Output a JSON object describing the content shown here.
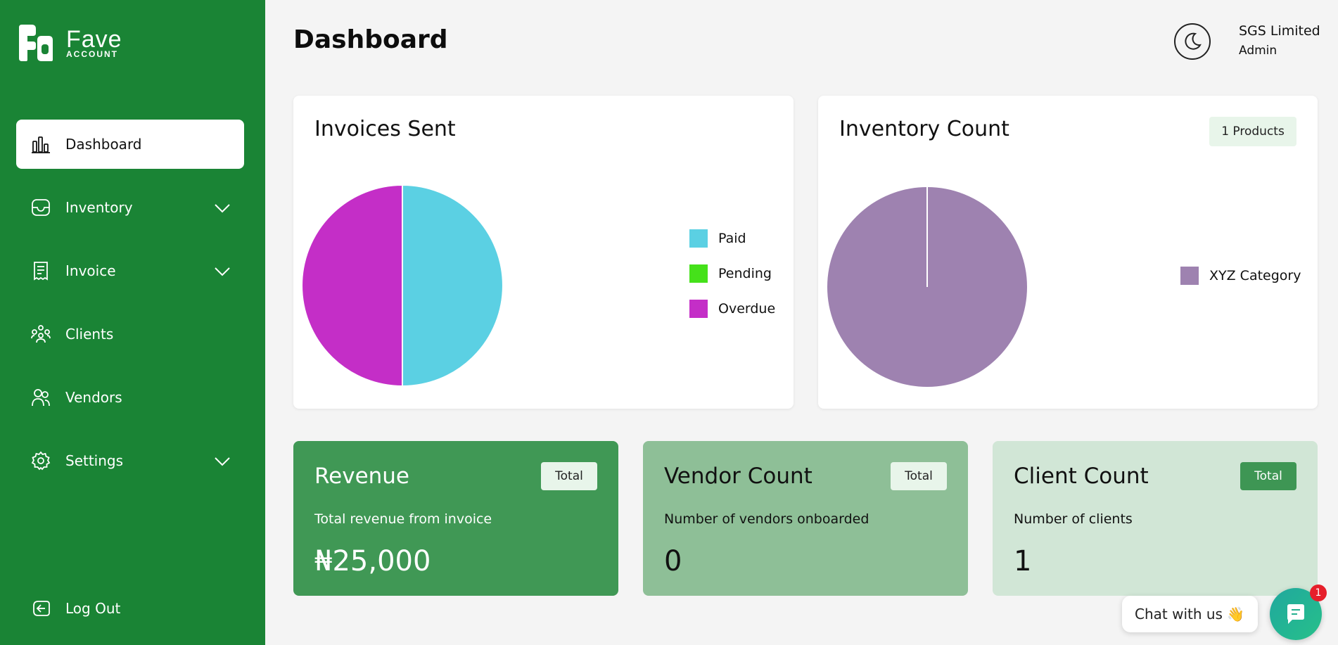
{
  "brand": {
    "line1": "Fave",
    "line2": "ACCOUNT"
  },
  "sidebar": {
    "items": [
      {
        "label": "Dashboard",
        "icon": "bar-chart-icon",
        "active": true,
        "has_submenu": false
      },
      {
        "label": "Inventory",
        "icon": "inbox-icon",
        "active": false,
        "has_submenu": true
      },
      {
        "label": "Invoice",
        "icon": "receipt-icon",
        "active": false,
        "has_submenu": true
      },
      {
        "label": "Clients",
        "icon": "clients-icon",
        "active": false,
        "has_submenu": false
      },
      {
        "label": "Vendors",
        "icon": "users-icon",
        "active": false,
        "has_submenu": false
      },
      {
        "label": "Settings",
        "icon": "gear-icon",
        "active": false,
        "has_submenu": true
      }
    ],
    "logout_label": "Log Out"
  },
  "header": {
    "title": "Dashboard",
    "user_name": "SGS Limited",
    "user_role": "Admin"
  },
  "invoices_card": {
    "title": "Invoices Sent",
    "legend": [
      {
        "label": "Paid",
        "color": "#5bd0e3"
      },
      {
        "label": "Pending",
        "color": "#45e11a"
      },
      {
        "label": "Overdue",
        "color": "#c42ec7"
      }
    ]
  },
  "inventory_card": {
    "title": "Inventory Count",
    "badge": "1 Products",
    "legend": [
      {
        "label": "XYZ Category",
        "color": "#9e82b0"
      }
    ]
  },
  "chart_data": [
    {
      "type": "pie",
      "categories": [
        "Paid",
        "Pending",
        "Overdue"
      ],
      "values": [
        1,
        0,
        1
      ],
      "colors": [
        "#5bd0e3",
        "#45e11a",
        "#c42ec7"
      ],
      "title": "Invoices Sent"
    },
    {
      "type": "pie",
      "categories": [
        "XYZ Category"
      ],
      "values": [
        1
      ],
      "colors": [
        "#9e82b0"
      ],
      "title": "Inventory Count"
    }
  ],
  "stats": {
    "revenue": {
      "title": "Revenue",
      "badge": "Total",
      "desc": "Total revenue from invoice",
      "value": "₦25,000"
    },
    "vendors": {
      "title": "Vendor Count",
      "badge": "Total",
      "desc": "Number of vendors onboarded",
      "value": "0"
    },
    "clients": {
      "title": "Client Count",
      "badge": "Total",
      "desc": "Number of clients",
      "value": "1"
    }
  },
  "chat": {
    "label": "Chat with us",
    "emoji": "👋",
    "unread": "1"
  },
  "colors": {
    "sidebar": "#1a8435",
    "revenue_card": "#409855",
    "vendor_card": "#8ebf97",
    "client_card": "#d1e6d6",
    "badge_light": "#e8f5ea",
    "badge_dark": "#3e9654"
  }
}
